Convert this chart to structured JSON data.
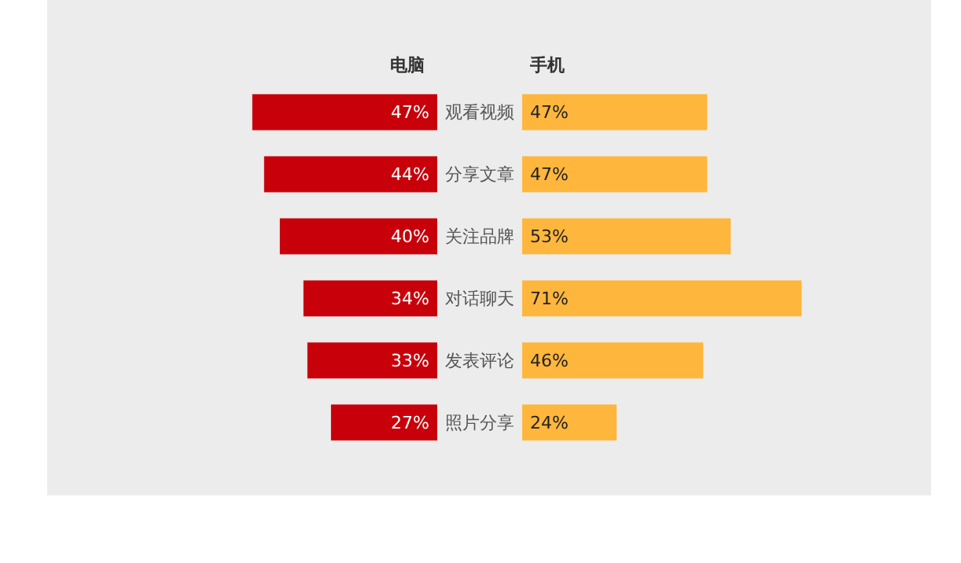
{
  "chart_data": [
    {
      "type": "bar",
      "orientation": "horizontal",
      "title": "电脑",
      "categories": [
        "观看视频",
        "分享文章",
        "关注品牌",
        "对话聊天",
        "发表评论",
        "照片分享"
      ],
      "tick_labels": "y",
      "series": [
        {
          "color": "#c8000a",
          "values": [
            47,
            44,
            40,
            34,
            33,
            27
          ],
          "value_labels": [
            "47%",
            "44%",
            "40%",
            "34%",
            "33%",
            "27%"
          ]
        }
      ]
    },
    {
      "type": "bar",
      "orientation": "horizontal",
      "title": "手机",
      "categories": [
        null,
        null,
        null,
        null,
        null,
        null
      ],
      "tick_labels": false,
      "series": [
        {
          "color": "#ffb63d",
          "values": [
            47,
            47,
            53,
            71,
            46,
            24
          ],
          "value_labels": [
            "47%",
            "47%",
            "53%",
            "71%",
            "46%",
            "24%"
          ]
        }
      ]
    }
  ]
}
